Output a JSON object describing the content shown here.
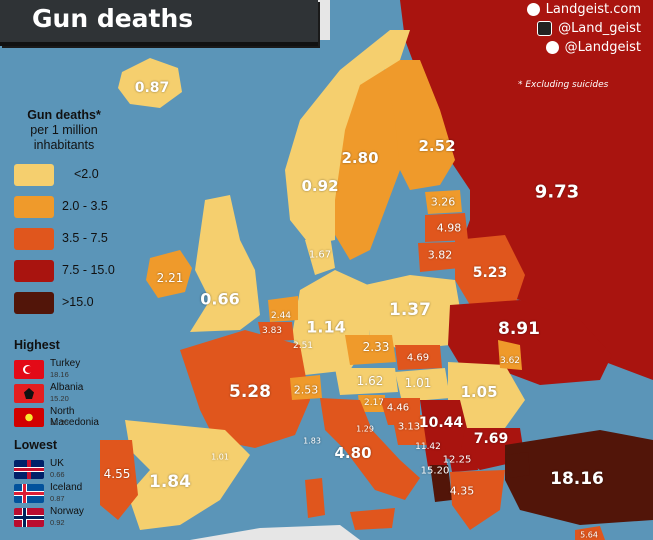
{
  "title": "Gun deaths",
  "brand": {
    "site": "Landgeist.com",
    "instagram": "@Land_geist",
    "twitter": "@Landgeist"
  },
  "note": "* Excluding suicides",
  "legend": {
    "title": "Gun deaths*",
    "subtitle_line1": "per 1 million",
    "subtitle_line2": "inhabitants",
    "items": [
      {
        "label": "<2.0",
        "color": "#f5cf6e"
      },
      {
        "label": "2.0 - 3.5",
        "color": "#ef9a2b"
      },
      {
        "label": "3.5 - 7.5",
        "color": "#e0561d"
      },
      {
        "label": "7.5 - 15.0",
        "color": "#a9140f"
      },
      {
        "label": ">15.0",
        "color": "#521509"
      }
    ]
  },
  "highest": {
    "title": "Highest",
    "items": [
      {
        "name": "Turkey",
        "value": "18.16"
      },
      {
        "name": "Albania",
        "value": "15.20"
      },
      {
        "name": "North Macedonia",
        "value": "12.25"
      }
    ]
  },
  "lowest": {
    "title": "Lowest",
    "items": [
      {
        "name": "UK",
        "value": "0.66"
      },
      {
        "name": "Iceland",
        "value": "0.87"
      },
      {
        "name": "Norway",
        "value": "0.92"
      }
    ]
  },
  "map_labels": [
    {
      "id": "iceland",
      "text": "0.87"
    },
    {
      "id": "norway",
      "text": "0.92"
    },
    {
      "id": "sweden",
      "text": "2.80"
    },
    {
      "id": "finland",
      "text": "2.52"
    },
    {
      "id": "russia",
      "text": "9.73"
    },
    {
      "id": "estonia",
      "text": "3.26"
    },
    {
      "id": "latvia",
      "text": "4.98"
    },
    {
      "id": "lithuania",
      "text": "3.82"
    },
    {
      "id": "belarus",
      "text": "5.23"
    },
    {
      "id": "denmark",
      "text": "1.67"
    },
    {
      "id": "ireland",
      "text": "2.21"
    },
    {
      "id": "uk",
      "text": "0.66"
    },
    {
      "id": "netherlands",
      "text": "2.44"
    },
    {
      "id": "belgium",
      "text": "3.83"
    },
    {
      "id": "luxembourg",
      "text": "2.51"
    },
    {
      "id": "germany",
      "text": "1.14"
    },
    {
      "id": "poland",
      "text": "1.37"
    },
    {
      "id": "ukraine",
      "text": "8.91"
    },
    {
      "id": "moldova",
      "text": "3.62"
    },
    {
      "id": "czechia",
      "text": "2.33"
    },
    {
      "id": "slovakia",
      "text": "4.69"
    },
    {
      "id": "austria",
      "text": "1.62"
    },
    {
      "id": "hungary",
      "text": "1.01"
    },
    {
      "id": "romania",
      "text": "1.05"
    },
    {
      "id": "switzerland",
      "text": "2.53"
    },
    {
      "id": "france",
      "text": "5.28"
    },
    {
      "id": "slovenia",
      "text": "2.17"
    },
    {
      "id": "croatia",
      "text": "4.46"
    },
    {
      "id": "bosnia",
      "text": "3.13"
    },
    {
      "id": "serbia",
      "text": "10.44"
    },
    {
      "id": "bulgaria",
      "text": "7.69"
    },
    {
      "id": "montenegro",
      "text": "11.42"
    },
    {
      "id": "northmacedonia",
      "text": "12.25"
    },
    {
      "id": "albania",
      "text": "15.20"
    },
    {
      "id": "greece",
      "text": "4.35"
    },
    {
      "id": "italy",
      "text": "4.80"
    },
    {
      "id": "sanmarino",
      "text": "1.29"
    },
    {
      "id": "monaco",
      "text": "1.83"
    },
    {
      "id": "andorra",
      "text": "1.01"
    },
    {
      "id": "spain",
      "text": "1.84"
    },
    {
      "id": "portugal",
      "text": "4.55"
    },
    {
      "id": "turkey",
      "text": "18.16"
    },
    {
      "id": "cyprus",
      "text": "5.64"
    }
  ]
}
